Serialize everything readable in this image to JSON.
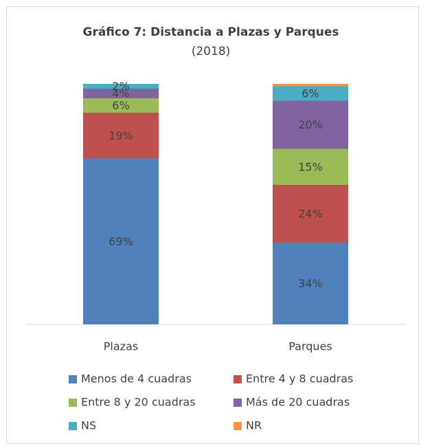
{
  "chart_data": {
    "type": "stacked_bar",
    "title": "Gráfico 7: Distancia a Plazas y Parques",
    "subtitle": "(2018)",
    "categories": [
      "Plazas",
      "Parques"
    ],
    "ylim": [
      0,
      100
    ],
    "legend": "bottom",
    "series": [
      {
        "name": "Menos de 4 cuadras",
        "color": "#4f81bd",
        "values": [
          69,
          34
        ],
        "value_labels": [
          "69%",
          "34%"
        ]
      },
      {
        "name": "Entre 4 y 8 cuadras",
        "color": "#c0504d",
        "values": [
          19,
          24
        ],
        "value_labels": [
          "19%",
          "24%"
        ]
      },
      {
        "name": "Entre 8 y 20 cuadras",
        "color": "#9bbb59",
        "values": [
          6,
          15
        ],
        "value_labels": [
          "6%",
          "15%"
        ]
      },
      {
        "name": "Más de 20 cuadras",
        "color": "#8064a2",
        "values": [
          4,
          20
        ],
        "value_labels": [
          "4%",
          "20%"
        ]
      },
      {
        "name": "NS",
        "color": "#4bacc6",
        "values": [
          2,
          6
        ],
        "value_labels": [
          "2%",
          "6%"
        ]
      },
      {
        "name": "NR",
        "color": "#f79646",
        "values": [
          0,
          1
        ],
        "value_labels": [
          null,
          null
        ]
      }
    ]
  }
}
